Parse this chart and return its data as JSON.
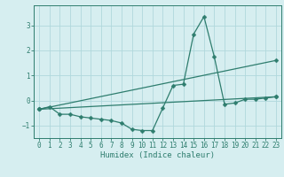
{
  "title": "",
  "xlabel": "Humidex (Indice chaleur)",
  "ylabel": "",
  "bg_color": "#d6eef0",
  "line_color": "#2e7d6e",
  "grid_color": "#b0d8dc",
  "xlim": [
    -0.5,
    23.5
  ],
  "ylim": [
    -1.5,
    3.8
  ],
  "yticks": [
    -1,
    0,
    1,
    2,
    3
  ],
  "xticks": [
    0,
    1,
    2,
    3,
    4,
    5,
    6,
    7,
    8,
    9,
    10,
    11,
    12,
    13,
    14,
    15,
    16,
    17,
    18,
    19,
    20,
    21,
    22,
    23
  ],
  "curve1_x": [
    0,
    1,
    2,
    3,
    4,
    5,
    6,
    7,
    8,
    9,
    10,
    11,
    12,
    13,
    14,
    15,
    16,
    17,
    18,
    19,
    20,
    21,
    22,
    23
  ],
  "curve1_y": [
    -0.35,
    -0.25,
    -0.55,
    -0.55,
    -0.65,
    -0.7,
    -0.75,
    -0.8,
    -0.9,
    -1.15,
    -1.2,
    -1.2,
    -0.3,
    0.6,
    0.65,
    2.65,
    3.35,
    1.75,
    -0.15,
    -0.1,
    0.05,
    0.05,
    0.1,
    0.15
  ],
  "curve2_x": [
    0,
    23
  ],
  "curve2_y": [
    -0.35,
    0.15
  ],
  "curve3_x": [
    0,
    23
  ],
  "curve3_y": [
    -0.35,
    1.6
  ],
  "marker": "D",
  "markersize": 2.5,
  "xlabel_fontsize": 6.5,
  "tick_fontsize": 5.5
}
